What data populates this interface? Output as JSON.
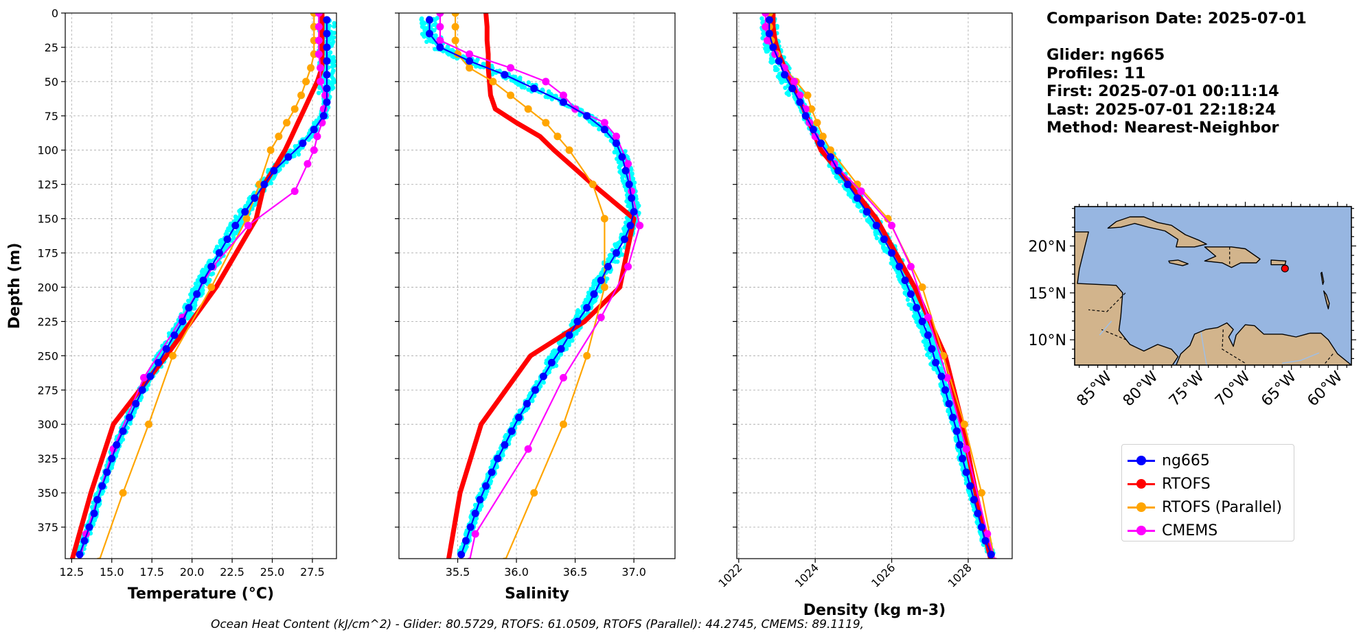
{
  "info": {
    "comparison_date": "Comparison Date: 2025-07-01",
    "glider": "Glider: ng665",
    "profiles": "Profiles: 11",
    "first": "First: 2025-07-01 00:11:14",
    "last": "Last: 2025-07-01 22:18:24",
    "method": "Method: Nearest-Neighbor"
  },
  "footer": "Ocean Heat Content (kJ/cm^2) - Glider: 80.5729,  RTOFS: 61.0509,  RTOFS (Parallel): 44.2745,  CMEMS: 89.1119,",
  "legend": [
    {
      "label": "ng665",
      "color": "#0000ff"
    },
    {
      "label": "RTOFS",
      "color": "#ff0000"
    },
    {
      "label": "RTOFS (Parallel)",
      "color": "#ffa500"
    },
    {
      "label": "CMEMS",
      "color": "#ff00ff"
    }
  ],
  "colors": {
    "glider_raw": "#00ffff",
    "ocean": "#97b6e1",
    "land": "#d2b48c"
  },
  "chart_data": [
    {
      "type": "line",
      "id": "temperature",
      "xlabel": "Temperature (°C)",
      "ylabel": "Depth (m)",
      "xlim": [
        12.1,
        29.0
      ],
      "ylim": [
        0,
        398
      ],
      "y_inverted": true,
      "xticks": [
        12.5,
        15.0,
        17.5,
        20.0,
        22.5,
        25.0,
        27.5
      ],
      "xtick_labels": [
        "12.5",
        "15.0",
        "17.5",
        "20.0",
        "22.5",
        "25.0",
        "27.5"
      ],
      "yticks": [
        0,
        25,
        50,
        75,
        100,
        125,
        150,
        175,
        200,
        225,
        250,
        275,
        300,
        325,
        350,
        375
      ],
      "grid": true,
      "series": [
        {
          "name": "ng665",
          "color": "#0000ff",
          "marker": true,
          "depth": [
            5,
            15,
            25,
            35,
            45,
            55,
            65,
            75,
            85,
            95,
            105,
            115,
            125,
            135,
            145,
            155,
            165,
            175,
            185,
            195,
            205,
            215,
            225,
            235,
            245,
            255,
            265,
            275,
            285,
            295,
            305,
            315,
            325,
            335,
            345,
            355,
            365,
            375,
            385,
            395
          ],
          "values": [
            28.4,
            28.4,
            28.4,
            28.4,
            28.4,
            28.4,
            28.4,
            28.2,
            27.6,
            26.9,
            26.0,
            25.1,
            24.5,
            23.9,
            23.3,
            22.7,
            22.2,
            21.7,
            21.2,
            20.7,
            20.3,
            19.8,
            19.4,
            18.9,
            18.4,
            17.9,
            17.4,
            16.9,
            16.5,
            16.1,
            15.7,
            15.3,
            15.0,
            14.7,
            14.4,
            14.1,
            13.9,
            13.6,
            13.3,
            13.0
          ]
        },
        {
          "name": "RTOFS",
          "color": "#ff0000",
          "marker": false,
          "depth": [
            0,
            10,
            20,
            30,
            40,
            50,
            60,
            70,
            80,
            90,
            100,
            110,
            125,
            150,
            200,
            250,
            300,
            350,
            400
          ],
          "values": [
            28.1,
            28.1,
            28.1,
            28.1,
            28.1,
            27.8,
            27.4,
            27.0,
            26.6,
            26.2,
            25.8,
            25.3,
            24.5,
            24.0,
            21.5,
            18.4,
            15.1,
            13.7,
            12.5
          ]
        },
        {
          "name": "RTOFS (Parallel)",
          "color": "#ffa500",
          "marker": true,
          "depth": [
            0,
            10,
            20,
            30,
            40,
            50,
            60,
            70,
            80,
            90,
            100,
            125,
            150,
            200,
            250,
            300,
            350,
            400
          ],
          "values": [
            27.6,
            27.6,
            27.6,
            27.6,
            27.4,
            27.1,
            26.8,
            26.4,
            25.9,
            25.4,
            24.9,
            24.2,
            23.4,
            21.2,
            18.8,
            17.3,
            15.7,
            14.2
          ]
        },
        {
          "name": "CMEMS",
          "color": "#ff00ff",
          "marker": true,
          "depth": [
            0,
            10,
            20,
            30,
            40,
            50,
            60,
            70,
            80,
            90,
            100,
            110,
            130,
            155,
            185,
            222,
            266,
            318,
            380,
            400
          ],
          "values": [
            27.9,
            27.9,
            27.9,
            27.9,
            28.0,
            28.0,
            28.3,
            28.2,
            28.1,
            27.8,
            27.6,
            27.2,
            26.4,
            23.5,
            21.3,
            19.4,
            17.0,
            15.1,
            13.4,
            13.0
          ]
        }
      ]
    },
    {
      "type": "line",
      "id": "salinity",
      "xlabel": "Salinity",
      "ylim": [
        0,
        398
      ],
      "xlim": [
        35.0,
        37.35
      ],
      "xticks": [
        35.5,
        36.0,
        36.5,
        37.0
      ],
      "xtick_labels": [
        "35.5",
        "36.0",
        "36.5",
        "37.0"
      ],
      "grid": true,
      "series": [
        {
          "name": "ng665",
          "color": "#0000ff",
          "marker": true,
          "depth": [
            5,
            15,
            25,
            35,
            45,
            55,
            65,
            75,
            85,
            95,
            105,
            115,
            125,
            135,
            145,
            155,
            165,
            175,
            185,
            195,
            205,
            215,
            225,
            235,
            245,
            255,
            265,
            275,
            285,
            295,
            305,
            315,
            325,
            335,
            345,
            355,
            365,
            375,
            385,
            395
          ],
          "values": [
            35.26,
            35.26,
            35.35,
            35.6,
            35.9,
            36.15,
            36.4,
            36.6,
            36.75,
            36.85,
            36.9,
            36.93,
            36.96,
            36.98,
            37.0,
            36.97,
            36.92,
            36.85,
            36.78,
            36.72,
            36.66,
            36.6,
            36.52,
            36.45,
            36.38,
            36.3,
            36.23,
            36.16,
            36.09,
            36.02,
            35.96,
            35.9,
            35.84,
            35.79,
            35.74,
            35.69,
            35.65,
            35.61,
            35.57,
            35.53
          ]
        },
        {
          "name": "RTOFS",
          "color": "#ff0000",
          "marker": false,
          "depth": [
            0,
            10,
            20,
            30,
            40,
            50,
            60,
            70,
            80,
            90,
            100,
            125,
            150,
            200,
            225,
            250,
            300,
            350,
            400
          ],
          "values": [
            35.74,
            35.75,
            35.75,
            35.76,
            35.76,
            35.77,
            35.78,
            35.82,
            36.0,
            36.2,
            36.32,
            36.65,
            37.0,
            36.88,
            36.58,
            36.12,
            35.7,
            35.52,
            35.42
          ]
        },
        {
          "name": "RTOFS (Parallel)",
          "color": "#ffa500",
          "marker": true,
          "depth": [
            0,
            10,
            20,
            30,
            40,
            50,
            60,
            70,
            80,
            90,
            100,
            125,
            150,
            200,
            250,
            300,
            350,
            400
          ],
          "values": [
            35.48,
            35.48,
            35.48,
            35.5,
            35.6,
            35.8,
            35.95,
            36.1,
            36.25,
            36.35,
            36.45,
            36.65,
            36.75,
            36.75,
            36.6,
            36.4,
            36.15,
            35.9
          ]
        },
        {
          "name": "CMEMS",
          "color": "#ff00ff",
          "marker": true,
          "depth": [
            0,
            10,
            20,
            30,
            40,
            50,
            60,
            70,
            80,
            90,
            110,
            130,
            155,
            185,
            222,
            266,
            318,
            380,
            400
          ],
          "values": [
            35.35,
            35.35,
            35.35,
            35.6,
            35.95,
            36.25,
            36.4,
            36.5,
            36.75,
            36.85,
            36.95,
            36.98,
            37.05,
            36.95,
            36.72,
            36.4,
            36.1,
            35.65,
            35.6
          ]
        }
      ]
    },
    {
      "type": "line",
      "id": "density",
      "xlabel": "Density (kg m-3)",
      "ylim": [
        0,
        398
      ],
      "xlim": [
        1021.95,
        1029.15
      ],
      "xticks": [
        1022,
        1024,
        1026,
        1028
      ],
      "xtick_labels": [
        "1022",
        "1024",
        "1026",
        "1028"
      ],
      "grid": true,
      "series": [
        {
          "name": "ng665",
          "color": "#0000ff",
          "marker": true,
          "depth": [
            5,
            15,
            25,
            35,
            45,
            55,
            65,
            75,
            85,
            95,
            105,
            115,
            125,
            135,
            145,
            155,
            165,
            175,
            185,
            195,
            205,
            215,
            225,
            235,
            245,
            255,
            265,
            275,
            285,
            295,
            305,
            315,
            325,
            335,
            345,
            355,
            365,
            375,
            385,
            395
          ],
          "values": [
            1022.8,
            1022.8,
            1022.9,
            1023.05,
            1023.2,
            1023.4,
            1023.6,
            1023.75,
            1023.95,
            1024.15,
            1024.4,
            1024.6,
            1024.85,
            1025.1,
            1025.35,
            1025.6,
            1025.8,
            1026.0,
            1026.2,
            1026.35,
            1026.5,
            1026.65,
            1026.8,
            1026.95,
            1027.05,
            1027.15,
            1027.3,
            1027.4,
            1027.5,
            1027.6,
            1027.7,
            1027.78,
            1027.85,
            1027.95,
            1028.05,
            1028.15,
            1028.25,
            1028.35,
            1028.45,
            1028.6
          ]
        },
        {
          "name": "RTOFS",
          "color": "#ff0000",
          "marker": false,
          "depth": [
            0,
            10,
            20,
            30,
            40,
            50,
            60,
            70,
            80,
            90,
            100,
            125,
            150,
            200,
            250,
            300,
            350,
            400
          ],
          "values": [
            1022.9,
            1022.9,
            1022.95,
            1023.05,
            1023.2,
            1023.4,
            1023.55,
            1023.7,
            1023.85,
            1024.0,
            1024.15,
            1024.9,
            1025.6,
            1026.6,
            1027.4,
            1027.85,
            1028.2,
            1028.6
          ]
        },
        {
          "name": "RTOFS (Parallel)",
          "color": "#ffa500",
          "marker": true,
          "depth": [
            0,
            10,
            20,
            30,
            40,
            50,
            60,
            70,
            80,
            90,
            100,
            125,
            150,
            200,
            250,
            300,
            350,
            400
          ],
          "values": [
            1022.8,
            1022.8,
            1022.85,
            1023.0,
            1023.2,
            1023.5,
            1023.8,
            1023.9,
            1024.05,
            1024.2,
            1024.4,
            1025.1,
            1025.9,
            1026.8,
            1027.35,
            1027.9,
            1028.35,
            1028.7
          ]
        },
        {
          "name": "CMEMS",
          "color": "#ff00ff",
          "marker": true,
          "depth": [
            0,
            10,
            20,
            30,
            40,
            50,
            60,
            70,
            80,
            90,
            110,
            130,
            155,
            185,
            222,
            266,
            318,
            380,
            400
          ],
          "values": [
            1022.7,
            1022.7,
            1022.75,
            1022.95,
            1023.2,
            1023.45,
            1023.6,
            1023.75,
            1023.85,
            1024.0,
            1024.5,
            1025.2,
            1026.0,
            1026.5,
            1026.95,
            1027.45,
            1027.95,
            1028.5,
            1028.7
          ]
        }
      ]
    }
  ],
  "map": {
    "lon_range": [
      -88.5,
      -58.5
    ],
    "lat_range": [
      7.3,
      24.2
    ],
    "lon_ticks": [
      -85,
      -80,
      -75,
      -70,
      -65,
      -60
    ],
    "lon_labels": [
      "85°W",
      "80°W",
      "75°W",
      "70°W",
      "65°W",
      "60°W"
    ],
    "lat_ticks": [
      20,
      15,
      10
    ],
    "lat_labels": [
      "20°N",
      "15°N",
      "10°N"
    ],
    "glider_lon": -65.7,
    "glider_lat": 17.6
  }
}
